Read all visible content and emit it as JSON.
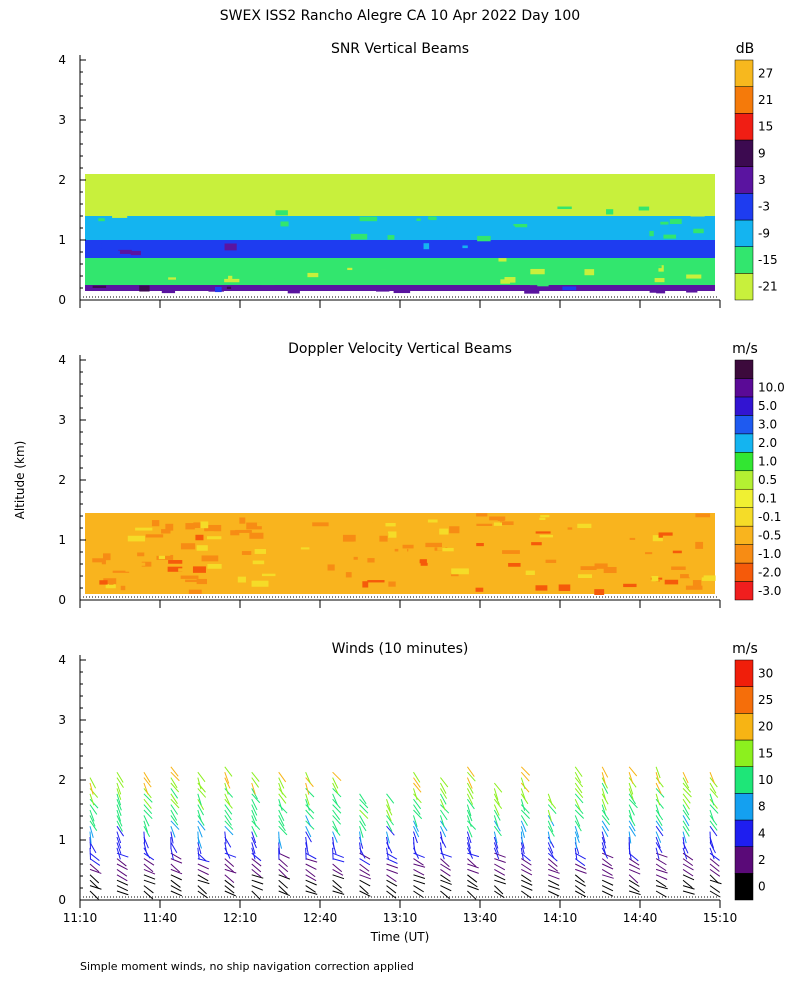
{
  "figure": {
    "title": "SWEX ISS2 Rancho Alegre CA  10 Apr 2022 Day 100",
    "ylabel": "Altitude (km)",
    "xlabel": "Time (UT)",
    "footnote": "Simple moment winds, no ship navigation correction applied",
    "x_ticks": [
      "11:10",
      "11:40",
      "12:10",
      "12:40",
      "13:10",
      "13:40",
      "14:10",
      "14:40",
      "15:10"
    ],
    "y_ticks": [
      "0",
      "1",
      "2",
      "3",
      "4"
    ]
  },
  "chart_data": [
    {
      "type": "heatmap",
      "title": "SNR Vertical Beams",
      "xlim": [
        "11:10",
        "15:10"
      ],
      "ylim": [
        0,
        4
      ],
      "colorbar": {
        "unit": "dB",
        "labels": [
          "-21",
          "-15",
          "-9",
          "-3",
          "3",
          "9",
          "15",
          "21",
          "27"
        ],
        "colors": [
          "#c8f03c",
          "#32e66e",
          "#14b4f0",
          "#1e3cf0",
          "#5a14a0",
          "#3c0a50",
          "#f01e14",
          "#f57a0a",
          "#f7b81e"
        ]
      },
      "approx_profile": [
        {
          "altitude_range_km": [
            0.15,
            0.25
          ],
          "snr_db": 6
        },
        {
          "altitude_range_km": [
            0.25,
            0.7
          ],
          "snr_db": -15
        },
        {
          "altitude_range_km": [
            0.7,
            1.0
          ],
          "snr_db": 0
        },
        {
          "altitude_range_km": [
            1.0,
            1.4
          ],
          "snr_db": -9
        },
        {
          "altitude_range_km": [
            1.4,
            1.6
          ],
          "snr_db": -18
        },
        {
          "altitude_range_km": [
            1.6,
            2.1
          ],
          "snr_db": -21
        }
      ]
    },
    {
      "type": "heatmap",
      "title": "Doppler Velocity Vertical Beams",
      "xlim": [
        "11:10",
        "15:10"
      ],
      "ylim": [
        0,
        4
      ],
      "colorbar": {
        "unit": "m/s",
        "labels": [
          "-3.0",
          "-2.0",
          "-1.0",
          "-0.5",
          "-0.1",
          "0.1",
          "0.5",
          "1.0",
          "2.0",
          "3.0",
          "5.0",
          "10.0"
        ],
        "colors": [
          "#f01e1e",
          "#f55a0a",
          "#f78c14",
          "#f9b41e",
          "#f5dc28",
          "#f0f032",
          "#b4f032",
          "#32e632",
          "#14b4f0",
          "#1e5af0",
          "#3214d2",
          "#5a0a96",
          "#3c0a3c"
        ]
      },
      "approx_profile": [
        {
          "altitude_range_km": [
            0.1,
            1.45
          ],
          "velocity_ms": -0.5
        }
      ]
    },
    {
      "type": "wind_barbs",
      "title": "Winds (10 minutes)",
      "xlim": [
        "11:10",
        "15:10"
      ],
      "ylim": [
        0,
        4
      ],
      "colorbar": {
        "unit": "m/s",
        "labels": [
          "0",
          "2",
          "4",
          "8",
          "10",
          "15",
          "20",
          "25",
          "30"
        ],
        "colors": [
          "#000000",
          "#5a0a78",
          "#1e1ef0",
          "#14a0f0",
          "#1ee678",
          "#8cf01e",
          "#f7b414",
          "#f56e0a",
          "#f01e0a"
        ]
      },
      "approx_profile": [
        {
          "altitude_km": 0.25,
          "speed_ms": 1
        },
        {
          "altitude_km": 0.6,
          "speed_ms": 3
        },
        {
          "altitude_km": 1.0,
          "speed_ms": 6
        },
        {
          "altitude_km": 1.4,
          "speed_ms": 12
        },
        {
          "altitude_km": 1.8,
          "speed_ms": 16
        },
        {
          "altitude_km": 2.3,
          "speed_ms": 22
        }
      ]
    }
  ]
}
